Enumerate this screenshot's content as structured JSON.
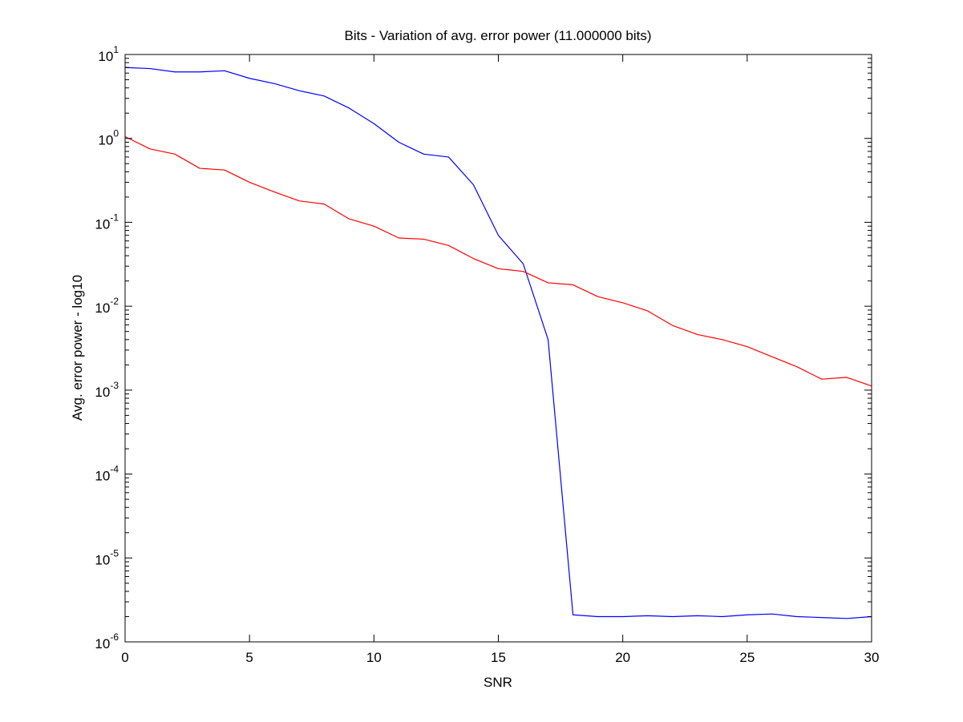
{
  "chart_data": {
    "type": "line",
    "title": "Bits - Variation of avg. error power (11.000000 bits)",
    "xlabel": "SNR",
    "ylabel": "Avg. error power - log10",
    "xlim": [
      0,
      30
    ],
    "ylim": [
      1e-06,
      10
    ],
    "yscale": "log",
    "grid": false,
    "x_ticks": [
      0,
      5,
      10,
      15,
      20,
      25,
      30
    ],
    "y_ticks": [
      {
        "value": 1e-06,
        "base": "10",
        "exp": "-6"
      },
      {
        "value": 1e-05,
        "base": "10",
        "exp": "-5"
      },
      {
        "value": 0.0001,
        "base": "10",
        "exp": "-4"
      },
      {
        "value": 0.001,
        "base": "10",
        "exp": "-3"
      },
      {
        "value": 0.01,
        "base": "10",
        "exp": "-2"
      },
      {
        "value": 0.1,
        "base": "10",
        "exp": "-1"
      },
      {
        "value": 1,
        "base": "10",
        "exp": "0"
      },
      {
        "value": 10,
        "base": "10",
        "exp": "1"
      }
    ],
    "x": [
      0,
      1,
      2,
      3,
      4,
      5,
      6,
      7,
      8,
      9,
      10,
      11,
      12,
      13,
      14,
      15,
      16,
      17,
      18,
      19,
      20,
      21,
      22,
      23,
      24,
      25,
      26,
      27,
      28,
      29,
      30
    ],
    "series": [
      {
        "color": "#0000ff",
        "values": [
          7.0,
          6.8,
          6.2,
          6.2,
          6.4,
          5.2,
          4.5,
          3.7,
          3.2,
          2.3,
          1.5,
          0.9,
          0.65,
          0.6,
          0.28,
          0.07,
          0.032,
          0.004,
          2.1e-06,
          2e-06,
          2e-06,
          2.05e-06,
          2e-06,
          2.05e-06,
          2e-06,
          2.1e-06,
          2.15e-06,
          2e-06,
          1.95e-06,
          1.9e-06,
          2e-06
        ]
      },
      {
        "color": "#ff0000",
        "values": [
          1.05,
          0.75,
          0.65,
          0.44,
          0.42,
          0.3,
          0.23,
          0.18,
          0.165,
          0.11,
          0.09,
          0.065,
          0.063,
          0.053,
          0.037,
          0.028,
          0.026,
          0.019,
          0.018,
          0.013,
          0.011,
          0.0088,
          0.0059,
          0.0046,
          0.004,
          0.0033,
          0.0025,
          0.0019,
          0.00135,
          0.00142,
          0.00112
        ]
      }
    ]
  }
}
